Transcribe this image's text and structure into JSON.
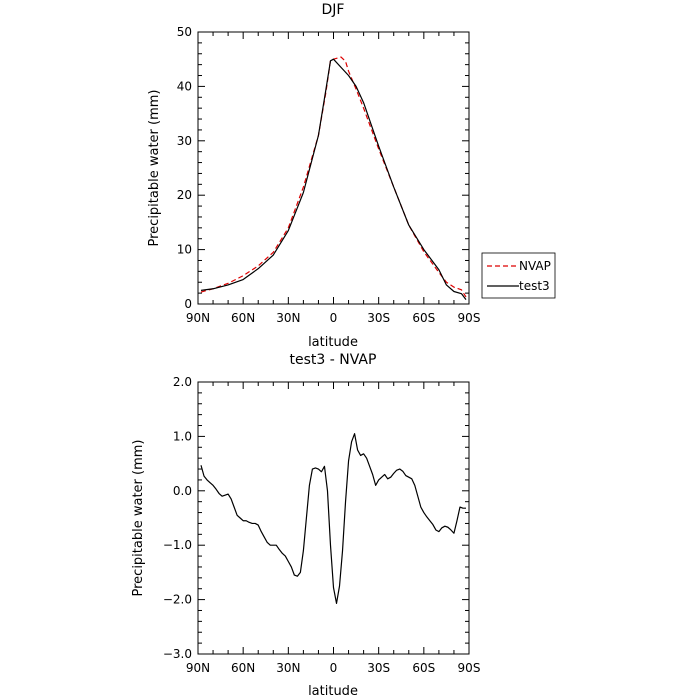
{
  "chart_data": [
    {
      "type": "line",
      "title": "DJF",
      "xlabel": "latitude",
      "ylabel": "Precipitable water (mm)",
      "xlim": [
        90,
        -90
      ],
      "ylim": [
        0,
        50
      ],
      "xticks": [
        {
          "v": 90,
          "label": "90N"
        },
        {
          "v": 60,
          "label": "60N"
        },
        {
          "v": 30,
          "label": "30N"
        },
        {
          "v": 0,
          "label": "0"
        },
        {
          "v": -30,
          "label": "30S"
        },
        {
          "v": -60,
          "label": "60S"
        },
        {
          "v": -90,
          "label": "90S"
        }
      ],
      "yticks": [
        {
          "v": 0,
          "label": "0"
        },
        {
          "v": 10,
          "label": "10"
        },
        {
          "v": 20,
          "label": "20"
        },
        {
          "v": 30,
          "label": "30"
        },
        {
          "v": 40,
          "label": "40"
        },
        {
          "v": 50,
          "label": "50"
        }
      ],
      "legend": {
        "placement": "right"
      },
      "series": [
        {
          "name": "NVAP",
          "color": "#dd0000",
          "dash": "dashed",
          "x": [
            88,
            80,
            70,
            60,
            50,
            40,
            30,
            20,
            10,
            5,
            2,
            0,
            -5,
            -8,
            -10,
            -15,
            -20,
            -30,
            -40,
            -50,
            -60,
            -70,
            -75,
            -80,
            -85,
            -88
          ],
          "y": [
            2.2,
            2.8,
            3.8,
            5.2,
            7.0,
            9.5,
            14.0,
            21.5,
            31.0,
            39.0,
            44.8,
            45.0,
            45.4,
            44.6,
            42.8,
            39.5,
            36.0,
            28.5,
            21.5,
            14.5,
            9.6,
            5.8,
            4.0,
            3.1,
            2.6,
            1.3
          ]
        },
        {
          "name": "test3",
          "color": "#000000",
          "dash": "solid",
          "x": [
            88,
            80,
            70,
            60,
            50,
            40,
            30,
            20,
            10,
            5,
            2,
            0,
            -5,
            -10,
            -15,
            -20,
            -30,
            -40,
            -50,
            -60,
            -70,
            -75,
            -80,
            -85,
            -88
          ],
          "y": [
            2.5,
            2.8,
            3.5,
            4.5,
            6.5,
            9.0,
            13.5,
            20.5,
            31.0,
            39.5,
            44.7,
            45.0,
            43.5,
            42.0,
            40.0,
            37.0,
            29.0,
            21.5,
            14.5,
            10.0,
            6.3,
            3.5,
            2.3,
            1.9,
            0.8
          ]
        }
      ]
    },
    {
      "type": "line",
      "title": "test3 - NVAP",
      "xlabel": "latitude",
      "ylabel": "Precipitable water (mm)",
      "xlim": [
        90,
        -90
      ],
      "ylim": [
        -3.0,
        2.0
      ],
      "xticks": [
        {
          "v": 90,
          "label": "90N"
        },
        {
          "v": 60,
          "label": "60N"
        },
        {
          "v": 30,
          "label": "30N"
        },
        {
          "v": 0,
          "label": "0"
        },
        {
          "v": -30,
          "label": "30S"
        },
        {
          "v": -60,
          "label": "60S"
        },
        {
          "v": -90,
          "label": "90S"
        }
      ],
      "yticks": [
        {
          "v": -3.0,
          "label": "−3.0"
        },
        {
          "v": -2.0,
          "label": "−2.0"
        },
        {
          "v": -1.0,
          "label": "−1.0"
        },
        {
          "v": 0.0,
          "label": "0.0"
        },
        {
          "v": 1.0,
          "label": "1.0"
        },
        {
          "v": 2.0,
          "label": "2.0"
        }
      ],
      "series": [
        {
          "color": "#000000",
          "dash": "solid",
          "x": [
            88,
            86,
            84,
            82,
            80,
            78,
            76,
            74,
            72,
            70,
            68,
            66,
            64,
            62,
            60,
            58,
            56,
            54,
            52,
            50,
            48,
            46,
            44,
            42,
            40,
            38,
            36,
            34,
            32,
            30,
            28,
            26,
            24,
            22,
            20,
            18,
            16,
            14,
            12,
            10,
            8,
            6,
            4,
            2,
            0,
            -2,
            -4,
            -6,
            -8,
            -10,
            -12,
            -14,
            -16,
            -18,
            -20,
            -22,
            -24,
            -26,
            -28,
            -30,
            -32,
            -34,
            -36,
            -38,
            -40,
            -42,
            -44,
            -46,
            -48,
            -50,
            -52,
            -54,
            -56,
            -58,
            -60,
            -62,
            -64,
            -66,
            -68,
            -70,
            -72,
            -74,
            -76,
            -78,
            -80,
            -82,
            -84,
            -86,
            -88
          ],
          "y": [
            0.47,
            0.27,
            0.2,
            0.15,
            0.1,
            0.03,
            -0.05,
            -0.1,
            -0.08,
            -0.06,
            -0.15,
            -0.3,
            -0.45,
            -0.5,
            -0.55,
            -0.55,
            -0.58,
            -0.6,
            -0.6,
            -0.63,
            -0.75,
            -0.85,
            -0.95,
            -1.0,
            -1.0,
            -1.0,
            -1.08,
            -1.15,
            -1.2,
            -1.3,
            -1.4,
            -1.55,
            -1.57,
            -1.5,
            -1.1,
            -0.5,
            0.1,
            0.4,
            0.42,
            0.4,
            0.35,
            0.45,
            0.0,
            -1.0,
            -1.78,
            -2.07,
            -1.75,
            -1.1,
            -0.2,
            0.55,
            0.9,
            1.05,
            0.75,
            0.65,
            0.68,
            0.6,
            0.45,
            0.3,
            0.1,
            0.2,
            0.25,
            0.3,
            0.22,
            0.25,
            0.32,
            0.38,
            0.4,
            0.36,
            0.28,
            0.25,
            0.22,
            0.1,
            -0.1,
            -0.3,
            -0.4,
            -0.48,
            -0.55,
            -0.62,
            -0.72,
            -0.75,
            -0.68,
            -0.65,
            -0.67,
            -0.72,
            -0.78,
            -0.55,
            -0.3,
            -0.32,
            -0.32
          ]
        }
      ]
    }
  ]
}
